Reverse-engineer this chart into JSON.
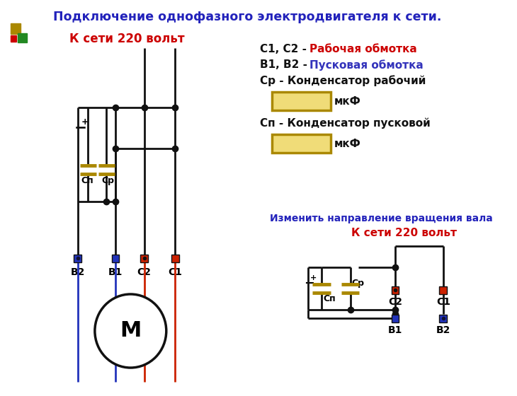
{
  "title": "Подключение однофазного электродвигателя к сети.",
  "title_color": "#2222bb",
  "bg_color": "#ffffff",
  "label_220v": "К сети 220 вольт",
  "label_220v_color": "#cc0000",
  "legend_c1c2_black": "С1, С2 - ",
  "legend_c1c2_colored": "Рабочая обмотка",
  "legend_c1c2_color": "#cc0000",
  "legend_b1b2_black": "В1, В2 - ",
  "legend_b1b2_colored": "Пусковая обмотка",
  "legend_b1b2_color": "#3333bb",
  "legend_cr": "Ср - Конденсатор рабочий",
  "legend_cp": "Сп - Конденсатор пусковой",
  "legend_mkf": "мкФ",
  "caption_reverse": "Изменить направление вращения вала",
  "caption_reverse_color": "#2222bb",
  "caption_220_2": "К сети 220 вольт",
  "caption_220_2_color": "#cc0000",
  "cap_color": "#aa8800",
  "cap_fill": "#f0dc78",
  "node_color": "#111111",
  "wire_color": "#111111",
  "red_color": "#cc2200",
  "blue_color": "#2233bb",
  "dark_red_color": "#8b0000",
  "dark_blue_color": "#00008b",
  "motor_color": "#111111"
}
